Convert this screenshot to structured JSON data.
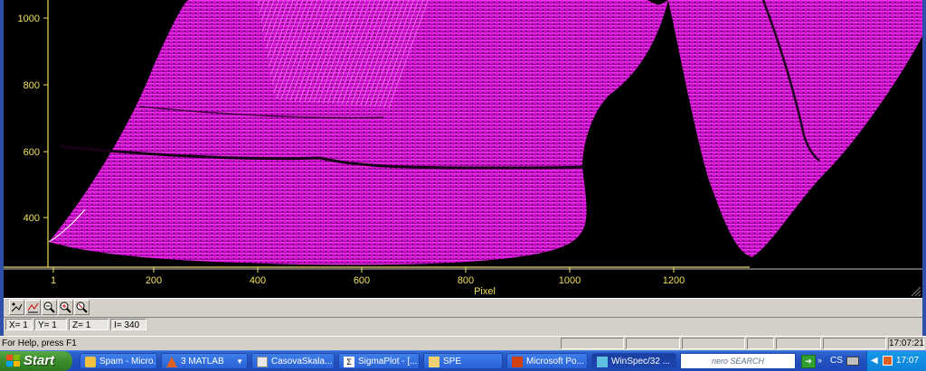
{
  "plot": {
    "y_ticks": [
      "1000",
      "800",
      "600",
      "400"
    ],
    "x_ticks": [
      "1",
      "200",
      "400",
      "600",
      "800",
      "1000",
      "1200"
    ],
    "x_label": "Pixel",
    "colors": {
      "background": "#000000",
      "surface": "#e010e0",
      "axis": "#f0e060"
    }
  },
  "toolbar": {
    "buttons": [
      "scale-icon",
      "autoscale-icon",
      "zoom-out-icon",
      "zoom-in-icon",
      "zoom-reset-icon"
    ]
  },
  "coords": {
    "x": "X=   1",
    "y": "Y=   1",
    "z": "Z=   1",
    "i": "I=  340"
  },
  "status": {
    "help": "For Help, press F1",
    "time": "17:07:21"
  },
  "taskbar": {
    "start": "Start",
    "tasks": [
      {
        "label": "Spam - Micro..."
      },
      {
        "label": "3 MATLAB"
      },
      {
        "label": "CasovaSkala..."
      },
      {
        "label": "SigmaPlot - [..."
      },
      {
        "label": "SPE"
      },
      {
        "label": "Microsoft Po..."
      },
      {
        "label": "WinSpec/32 ..."
      }
    ],
    "nero": "nero SEARCH",
    "lang": "CS",
    "clock": "17:07"
  }
}
